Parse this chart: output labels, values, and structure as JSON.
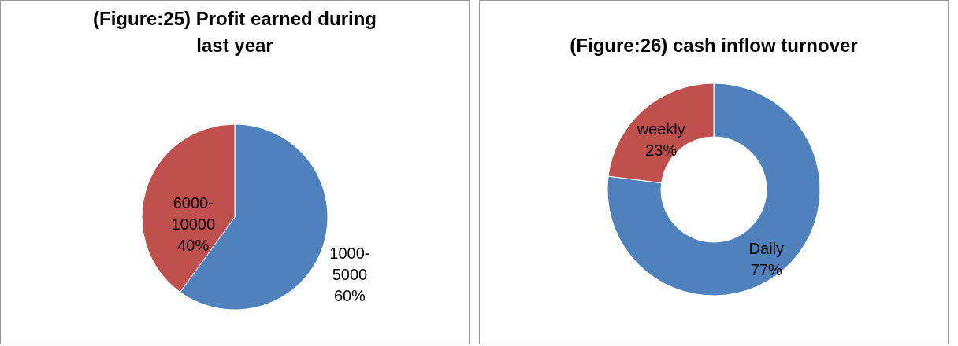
{
  "chart_data": [
    {
      "type": "pie",
      "title": "(Figure:25) Profit earned during last year",
      "categories": [
        "1000-5000",
        "6000-10000"
      ],
      "values": [
        60,
        40
      ],
      "colors": [
        "#4f81bd",
        "#c0504d"
      ],
      "value_labels": [
        "60%",
        "40%"
      ]
    },
    {
      "type": "donut",
      "title": "(Figure:26) cash inflow turnover",
      "categories": [
        "Daily",
        "weekly"
      ],
      "values": [
        77,
        23
      ],
      "colors": [
        "#4f81bd",
        "#c0504d"
      ],
      "value_labels": [
        "77%",
        "23%"
      ]
    }
  ]
}
